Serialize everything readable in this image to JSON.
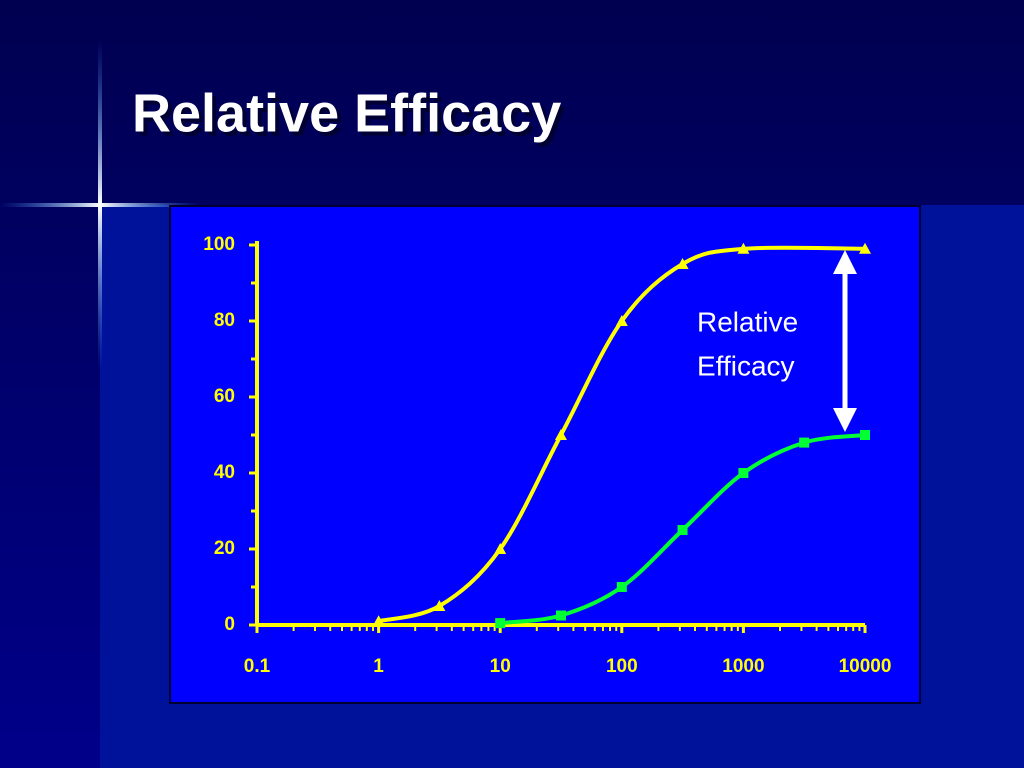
{
  "chart_data": {
    "type": "line",
    "title": "Relative Efficacy",
    "annotation_lines": [
      "Relative",
      "Efficacy"
    ],
    "xscale": "log",
    "xlim": [
      0.1,
      10000
    ],
    "xticks": [
      0.1,
      1,
      10,
      100,
      1000,
      10000
    ],
    "ylim": [
      0,
      100
    ],
    "yticks": [
      0,
      20,
      40,
      60,
      80,
      100
    ],
    "grid": false,
    "series": [
      {
        "color": "#ffff00",
        "marker": "triangle",
        "x": [
          1,
          3.16,
          10,
          31.6,
          100,
          316,
          1000,
          10000
        ],
        "values": [
          1,
          5,
          20,
          50,
          80,
          95,
          99,
          99
        ]
      },
      {
        "color": "#00ff33",
        "marker": "square",
        "x": [
          10,
          31.6,
          100,
          316,
          1000,
          3160,
          10000
        ],
        "values": [
          0.5,
          2.5,
          10,
          25,
          40,
          48,
          50
        ]
      }
    ]
  }
}
